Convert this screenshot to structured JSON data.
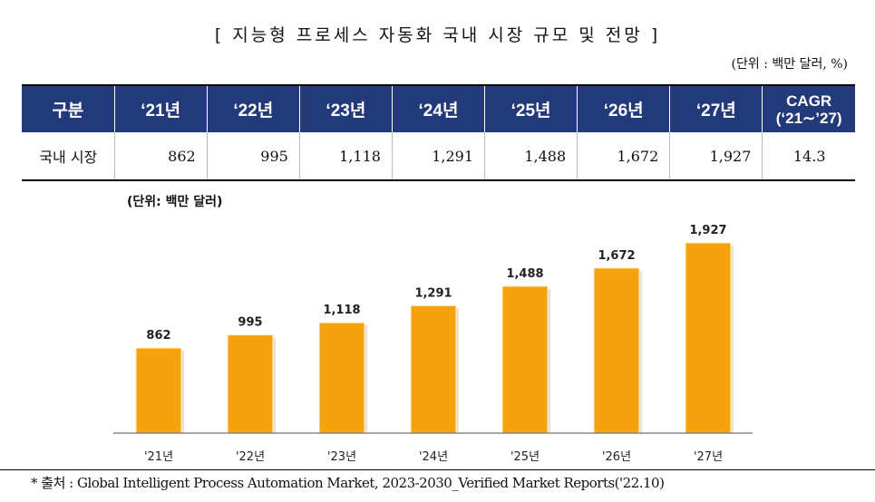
{
  "title": "[ 지능형 프로세스 자동화 국내 시장 규모 및 전망 ]",
  "table_unit": "(단위 : 백만 달러, %)",
  "table": {
    "headers": [
      "구분",
      "‘21년",
      "‘22년",
      "‘23년",
      "‘24년",
      "‘25년",
      "‘26년",
      "‘27년",
      "CAGR",
      "(‘21∼’27)"
    ],
    "row": {
      "label": "국내 시장",
      "values": [
        "862",
        "995",
        "1,118",
        "1,291",
        "1,488",
        "1,672",
        "1,927"
      ],
      "cagr": "14.3"
    },
    "header_color": "#223a7a"
  },
  "chart_data": {
    "type": "bar",
    "unit_label": "(단위: 백만 달러)",
    "categories": [
      "'21년",
      "'22년",
      "'23년",
      "'24년",
      "'25년",
      "'26년",
      "'27년"
    ],
    "values": [
      862,
      995,
      1118,
      1291,
      1488,
      1672,
      1927
    ],
    "data_labels": [
      "862",
      "995",
      "1,118",
      "1,291",
      "1,488",
      "1,672",
      "1,927"
    ],
    "ylim": [
      0,
      1927
    ],
    "grid": false,
    "bar_color": "#f5a20f"
  },
  "source": "* 출처 : Global Intelligent Process Automation Market, 2023-2030_Verified Market Reports('22.10)"
}
